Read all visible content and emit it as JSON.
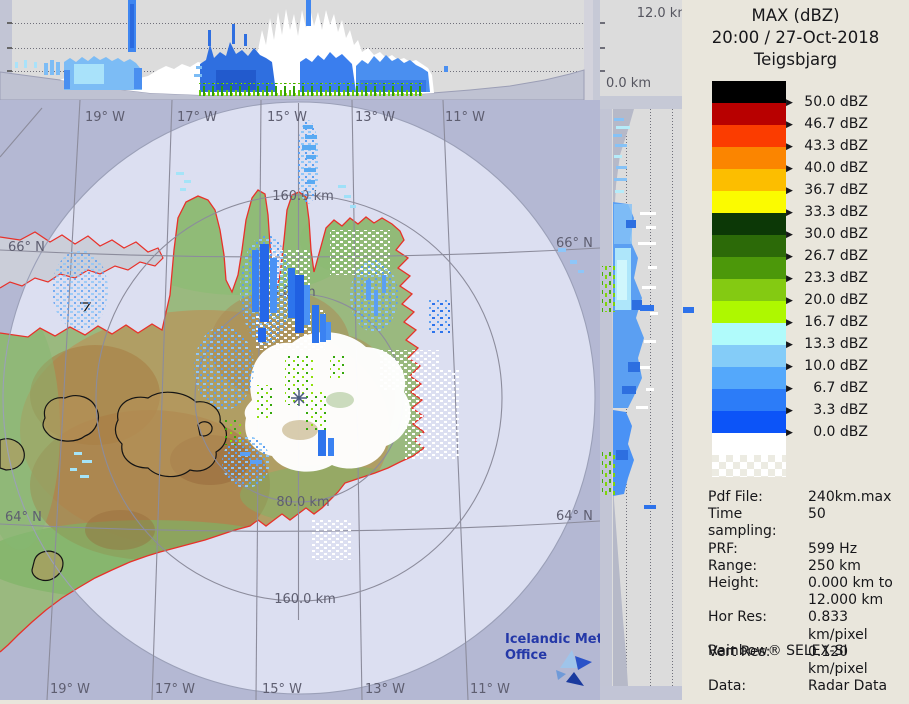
{
  "panel": {
    "title": "MAX (dBZ)",
    "datetime": "20:00 / 27-Oct-2018",
    "station": "Teigsbjarg",
    "legend_entries": [
      {
        "color": "#000000",
        "label": "50.0 dBZ"
      },
      {
        "color": "#b80000",
        "label": "46.7 dBZ"
      },
      {
        "color": "#fb3c00",
        "label": "43.3 dBZ"
      },
      {
        "color": "#fb8500",
        "label": "40.0 dBZ"
      },
      {
        "color": "#fcbe00",
        "label": "36.7 dBZ"
      },
      {
        "color": "#fbfb00",
        "label": "33.3 dBZ"
      },
      {
        "color": "#0c3806",
        "label": "30.0 dBZ"
      },
      {
        "color": "#2c6a08",
        "label": "26.7 dBZ"
      },
      {
        "color": "#4c980a",
        "label": "23.3 dBZ"
      },
      {
        "color": "#84ca12",
        "label": "20.0 dBZ"
      },
      {
        "color": "#aef800",
        "label": "16.7 dBZ"
      },
      {
        "color": "#b0fbfb",
        "label": "13.3 dBZ"
      },
      {
        "color": "#84ccf8",
        "label": "10.0 dBZ"
      },
      {
        "color": "#54a8fb",
        "label": "6.7 dBZ"
      },
      {
        "color": "#2c7cf8",
        "label": "3.3 dBZ"
      },
      {
        "color": "#0c54f8",
        "label": "0.0 dBZ"
      },
      {
        "color": "#ffffff",
        "label": null
      },
      {
        "color": null,
        "checker": true,
        "label": null
      }
    ],
    "meta": [
      {
        "label": "Pdf File:",
        "value": "240km.max"
      },
      {
        "label": "Time sampling:",
        "value": "50"
      },
      {
        "label": "PRF:",
        "value": "599 Hz"
      },
      {
        "label": "Range:",
        "value": "250 km"
      },
      {
        "label": "Height:",
        "value": "0.000 km to\n12.000 km"
      },
      {
        "label": "Hor Res:",
        "value": "0.833 km/pixel"
      },
      {
        "label": "Vert Res:",
        "value": "0.120 km/pixel"
      },
      {
        "label": "Data:",
        "value": "Radar Data"
      }
    ],
    "footer": "Rainbow® SELEX-SI"
  },
  "profile_axis": {
    "top": "12.0 km",
    "bottom": "0.0 km"
  },
  "map": {
    "lon_top": [
      "19° W",
      "17° W",
      "15° W",
      "13° W",
      "11° W"
    ],
    "lon_bottom": [
      "19° W",
      "17° W",
      "15° W",
      "13° W",
      "11° W"
    ],
    "lat_66": "66° N",
    "lat_64": "64° N",
    "ring_160": "160.0 km",
    "ring_80": "80.0 km",
    "logo_line1": "Icelandic Met",
    "logo_line2": "Office"
  },
  "colors": {
    "legend_bg": "#e9e6dc",
    "sea_outer": "#b4b8d3",
    "sea_inner": "#dcdff1",
    "coastline_red": "#e8312a",
    "profile_bg": "#dcdcdc",
    "profile_margin": "#c2c5d5",
    "echo_blue": "#2d72ea",
    "echo_light_blue": "#86c2f6",
    "echo_pale_cyan": "#b5ecfa"
  }
}
